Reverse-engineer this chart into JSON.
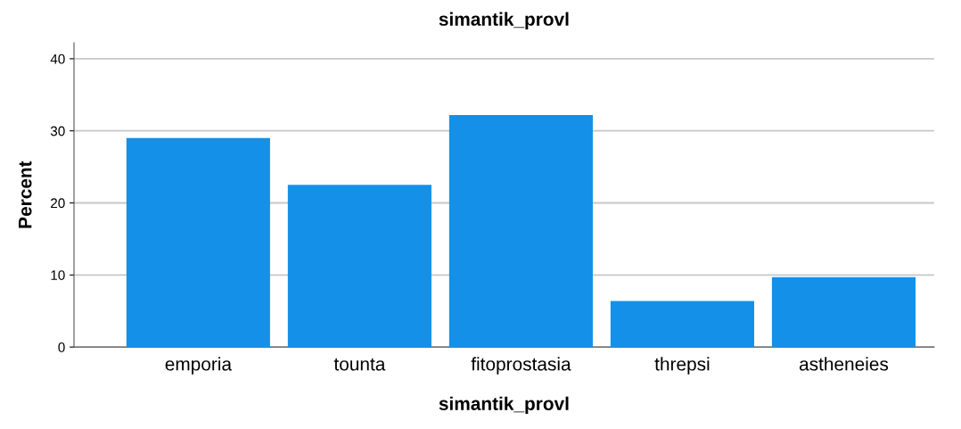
{
  "chart_data": {
    "type": "bar",
    "title": "simantik_provl",
    "xlabel": "simantik_provl",
    "ylabel": "Percent",
    "categories": [
      "emporia",
      "tounta",
      "fitoprostasia",
      "threpsi",
      "astheneies"
    ],
    "values": [
      29.0,
      22.5,
      32.2,
      6.4,
      9.7
    ],
    "color": "#1490e8",
    "ylim": [
      0,
      42.2
    ],
    "yticks": [
      0,
      10,
      20,
      30,
      40
    ],
    "grid": "y",
    "legend": false
  }
}
